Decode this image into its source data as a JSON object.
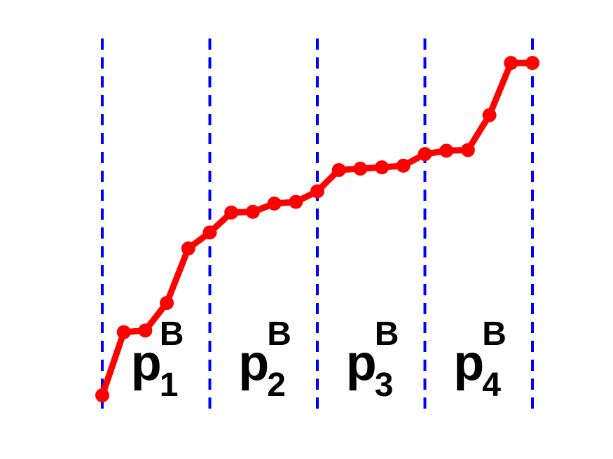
{
  "chart_data": {
    "type": "line",
    "title": "",
    "xlabel": "",
    "ylabel": "",
    "xlim": [
      0,
      20
    ],
    "ylim": [
      0,
      1
    ],
    "grid": false,
    "legend": "none",
    "line_color": "#ff0000",
    "divider_color": "#0000ff",
    "series": [
      {
        "x": [
          0,
          1,
          2,
          3,
          4,
          5,
          6,
          7,
          8,
          9,
          10,
          11,
          12,
          13,
          14,
          15,
          16,
          17,
          18,
          19,
          20
        ],
        "values": [
          0.0,
          0.19,
          0.195,
          0.278,
          0.442,
          0.49,
          0.55,
          0.552,
          0.577,
          0.582,
          0.614,
          0.678,
          0.682,
          0.686,
          0.691,
          0.726,
          0.736,
          0.738,
          0.843,
          1.0,
          1.0
        ]
      }
    ],
    "dividers": [
      0,
      5,
      10,
      15,
      20
    ],
    "segments": [
      {
        "base": "p",
        "sup": "B",
        "sub": "1"
      },
      {
        "base": "p",
        "sup": "B",
        "sub": "2"
      },
      {
        "base": "p",
        "sup": "B",
        "sub": "3"
      },
      {
        "base": "p",
        "sup": "B",
        "sub": "4"
      }
    ]
  }
}
